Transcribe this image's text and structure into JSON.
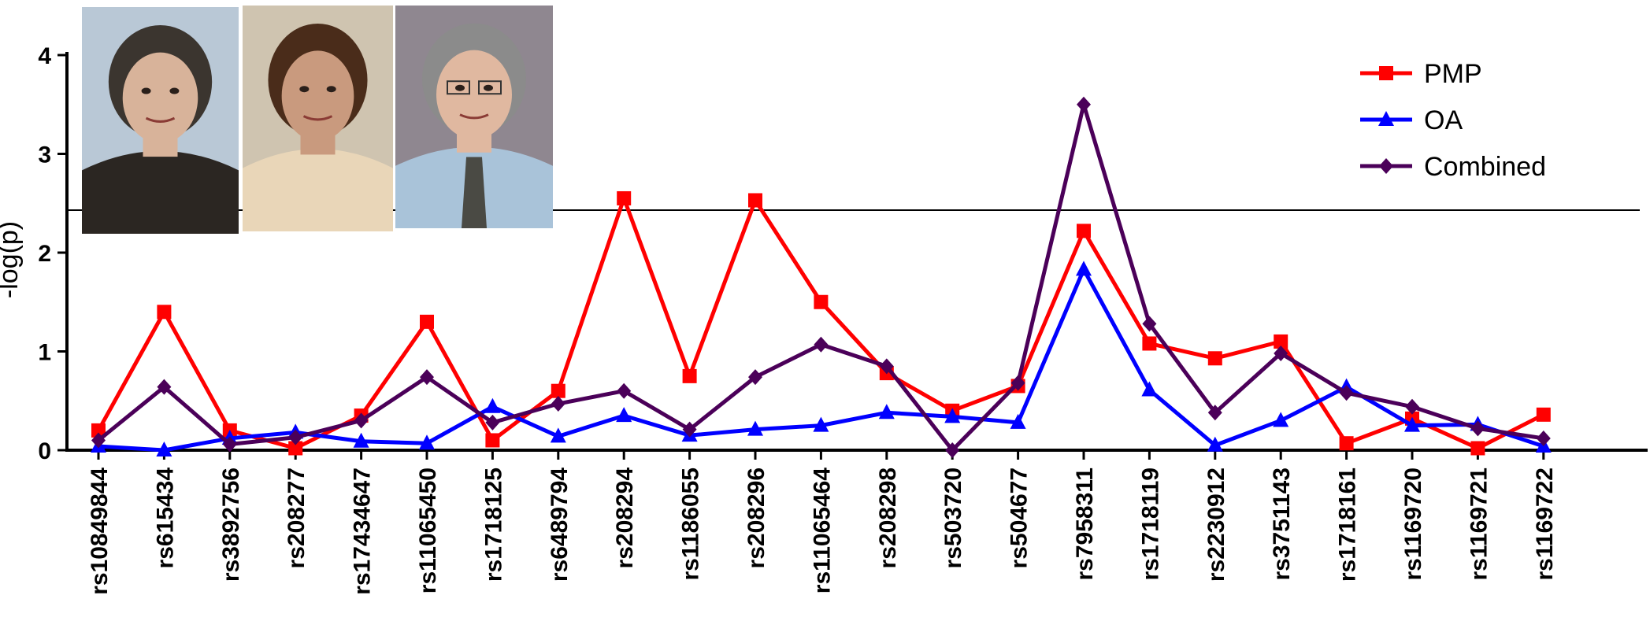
{
  "chart_data": {
    "type": "line",
    "ylabel": "-log(p)",
    "ylim": [
      0,
      4
    ],
    "yticks": [
      "0",
      "1",
      "2",
      "3",
      "4"
    ],
    "categories": [
      "rs10849844",
      "rs615434",
      "rs3892756",
      "rs208277",
      "rs17434647",
      "rs11065450",
      "rs1718125",
      "rs6489794",
      "rs208294",
      "rs1186055",
      "rs208296",
      "rs11065464",
      "rs208298",
      "rs503720",
      "rs504677",
      "rs7958311",
      "rs1718119",
      "rs2230912",
      "rs3751143",
      "rs1718161",
      "rs1169720",
      "rs1169721",
      "rs1169722"
    ],
    "series": [
      {
        "name": "PMP",
        "color": "#ff0000",
        "marker": "square",
        "values": [
          0.2,
          1.4,
          0.2,
          0.02,
          0.35,
          1.3,
          0.1,
          0.6,
          2.55,
          0.75,
          2.53,
          1.5,
          0.78,
          0.4,
          0.65,
          2.22,
          1.08,
          0.93,
          1.1,
          0.07,
          0.32,
          0.02,
          0.36
        ]
      },
      {
        "name": "OA",
        "color": "#0000ff",
        "marker": "triangle",
        "values": [
          0.04,
          0.0,
          0.12,
          0.18,
          0.09,
          0.07,
          0.44,
          0.14,
          0.35,
          0.15,
          0.21,
          0.25,
          0.38,
          0.34,
          0.28,
          1.83,
          0.61,
          0.05,
          0.3,
          0.64,
          0.25,
          0.26,
          0.04
        ]
      },
      {
        "name": "Combined",
        "color": "#4b0059",
        "marker": "diamond",
        "values": [
          0.1,
          0.64,
          0.06,
          0.13,
          0.3,
          0.74,
          0.28,
          0.47,
          0.6,
          0.21,
          0.74,
          1.07,
          0.85,
          0.0,
          0.68,
          3.5,
          1.28,
          0.38,
          0.98,
          0.58,
          0.44,
          0.22,
          0.12
        ]
      }
    ],
    "threshold": 2.43,
    "legend_position": "top-right",
    "grid": false
  },
  "photos": [
    {
      "name": "photo-man-1",
      "bg": "#b9c8d6",
      "hair": "#3b352f",
      "skin": "#d8b39a",
      "clothes": "#2b2622"
    },
    {
      "name": "photo-woman",
      "bg": "#cfc4b0",
      "hair": "#4a2c1a",
      "skin": "#c99a7e",
      "clothes": "#e9d6b8"
    },
    {
      "name": "photo-man-2",
      "bg": "#8f8790",
      "hair": "#8b8b8b",
      "skin": "#e0b8a0",
      "clothes": "#a9c3d9"
    }
  ]
}
